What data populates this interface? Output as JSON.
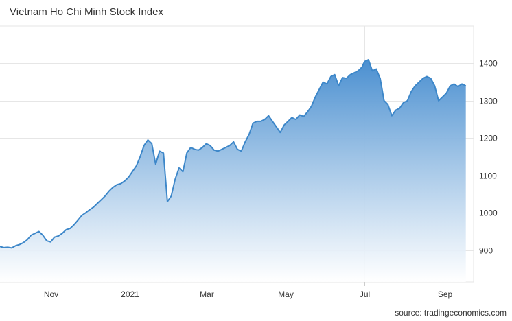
{
  "title": "Vietnam Ho Chi Minh Stock Index",
  "source": "source: tradingeconomics.com",
  "colors": {
    "line": "#3d87c9",
    "fill_top": "#4a8fd0",
    "fill_bottom": "#ffffff",
    "grid": "#e6e6e6"
  },
  "chart_data": {
    "type": "area",
    "title": "Vietnam Ho Chi Minh Stock Index",
    "xlabel": "",
    "ylabel": "",
    "ylim": [
      815,
      1500
    ],
    "xlim": [
      "2020-09-23",
      "2021-09-23"
    ],
    "y_ticks": [
      900,
      1000,
      1100,
      1200,
      1300,
      1400
    ],
    "x_ticks": [
      {
        "label": "Nov",
        "date": "2020-11-01"
      },
      {
        "label": "2021",
        "date": "2021-01-01"
      },
      {
        "label": "Mar",
        "date": "2021-03-01"
      },
      {
        "label": "May",
        "date": "2021-05-01"
      },
      {
        "label": "Jul",
        "date": "2021-07-01"
      },
      {
        "label": "Sep",
        "date": "2021-09-01"
      }
    ],
    "grid": true,
    "axis_position": "right",
    "series": [
      {
        "x": [
          "2020-09-23",
          "2020-09-26",
          "2020-09-29",
          "2020-10-02",
          "2020-10-05",
          "2020-10-08",
          "2020-10-11",
          "2020-10-14",
          "2020-10-17",
          "2020-10-20",
          "2020-10-23",
          "2020-10-26",
          "2020-10-29",
          "2020-11-01",
          "2020-11-04",
          "2020-11-07",
          "2020-11-10",
          "2020-11-13",
          "2020-11-16",
          "2020-11-19",
          "2020-11-22",
          "2020-11-25",
          "2020-11-28",
          "2020-12-01",
          "2020-12-04",
          "2020-12-07",
          "2020-12-10",
          "2020-12-13",
          "2020-12-16",
          "2020-12-19",
          "2020-12-22",
          "2020-12-25",
          "2020-12-28",
          "2020-12-31",
          "2021-01-03",
          "2021-01-06",
          "2021-01-09",
          "2021-01-12",
          "2021-01-15",
          "2021-01-18",
          "2021-01-21",
          "2021-01-24",
          "2021-01-27",
          "2021-01-30",
          "2021-02-02",
          "2021-02-05",
          "2021-02-08",
          "2021-02-11",
          "2021-02-14",
          "2021-02-17",
          "2021-02-20",
          "2021-02-23",
          "2021-02-26",
          "2021-03-01",
          "2021-03-04",
          "2021-03-07",
          "2021-03-10",
          "2021-03-13",
          "2021-03-16",
          "2021-03-19",
          "2021-03-22",
          "2021-03-25",
          "2021-03-28",
          "2021-03-31",
          "2021-04-03",
          "2021-04-06",
          "2021-04-09",
          "2021-04-12",
          "2021-04-15",
          "2021-04-18",
          "2021-04-21",
          "2021-04-24",
          "2021-04-27",
          "2021-04-30",
          "2021-05-03",
          "2021-05-06",
          "2021-05-09",
          "2021-05-12",
          "2021-05-15",
          "2021-05-18",
          "2021-05-21",
          "2021-05-24",
          "2021-05-27",
          "2021-05-30",
          "2021-06-02",
          "2021-06-05",
          "2021-06-08",
          "2021-06-11",
          "2021-06-14",
          "2021-06-17",
          "2021-06-20",
          "2021-06-23",
          "2021-06-26",
          "2021-06-29",
          "2021-07-01",
          "2021-07-04",
          "2021-07-07",
          "2021-07-10",
          "2021-07-13",
          "2021-07-16",
          "2021-07-19",
          "2021-07-22",
          "2021-07-25",
          "2021-07-28",
          "2021-07-31",
          "2021-08-03",
          "2021-08-06",
          "2021-08-09",
          "2021-08-12",
          "2021-08-15",
          "2021-08-18",
          "2021-08-21",
          "2021-08-24",
          "2021-08-27",
          "2021-08-30",
          "2021-09-02",
          "2021-09-05",
          "2021-09-08",
          "2021-09-11",
          "2021-09-14",
          "2021-09-17"
        ],
        "values": [
          910,
          907,
          908,
          906,
          912,
          915,
          920,
          928,
          940,
          945,
          950,
          940,
          925,
          922,
          935,
          938,
          945,
          955,
          958,
          968,
          980,
          993,
          1000,
          1008,
          1015,
          1025,
          1035,
          1045,
          1058,
          1068,
          1075,
          1078,
          1085,
          1095,
          1110,
          1125,
          1150,
          1180,
          1195,
          1185,
          1130,
          1165,
          1160,
          1030,
          1045,
          1090,
          1120,
          1110,
          1160,
          1175,
          1170,
          1168,
          1175,
          1185,
          1180,
          1168,
          1165,
          1170,
          1175,
          1180,
          1190,
          1170,
          1165,
          1190,
          1210,
          1240,
          1245,
          1245,
          1250,
          1260,
          1245,
          1230,
          1215,
          1235,
          1245,
          1255,
          1250,
          1262,
          1258,
          1270,
          1285,
          1310,
          1330,
          1350,
          1345,
          1365,
          1370,
          1340,
          1362,
          1360,
          1370,
          1375,
          1380,
          1390,
          1405,
          1410,
          1380,
          1385,
          1360,
          1300,
          1290,
          1260,
          1275,
          1280,
          1295,
          1300,
          1325,
          1340,
          1350,
          1360,
          1365,
          1360,
          1340,
          1300,
          1310,
          1320,
          1340,
          1345,
          1338,
          1345,
          1340
        ]
      }
    ]
  }
}
